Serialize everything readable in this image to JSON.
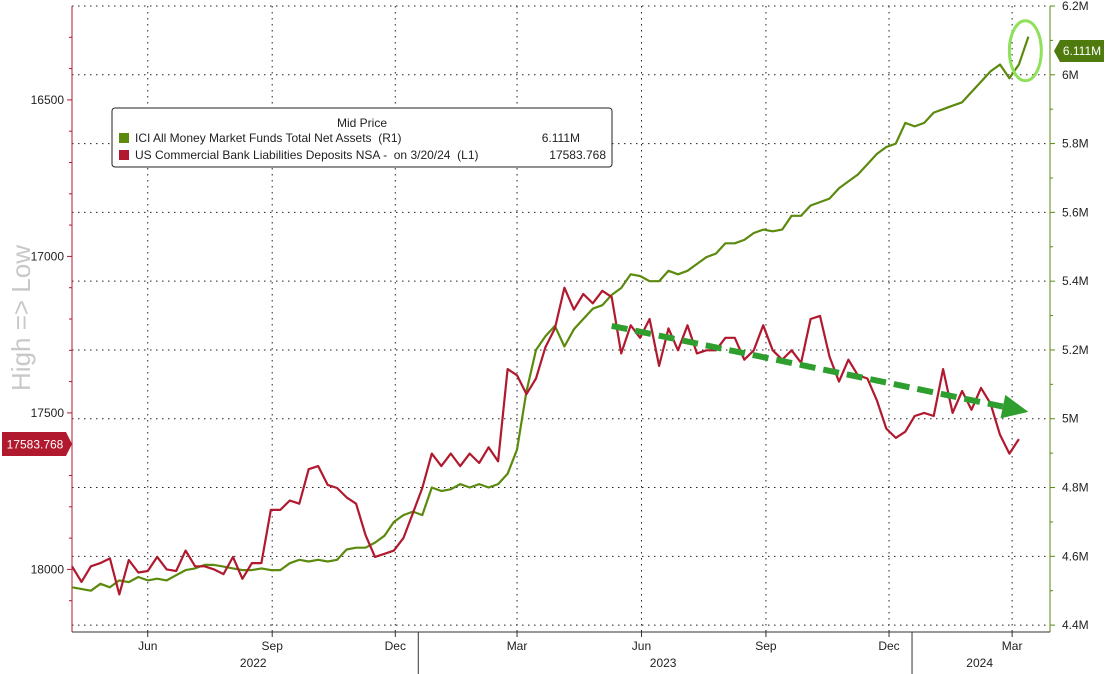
{
  "chart_data": {
    "type": "line",
    "title": "",
    "legend": {
      "title": "Mid Price",
      "placement": "top-left",
      "entries": [
        {
          "name": "ICI All Money Market Funds Total Net Assets  (R1)",
          "value": "6.111M",
          "color": "#5b8a0f"
        },
        {
          "name": "US Commercial Bank Liabilities Deposits NSA -  on 3/20/24  (L1)",
          "value": "17583.768",
          "color": "#b0192e"
        }
      ]
    },
    "left_axis": {
      "label": "High => Low",
      "inverted": true,
      "range": [
        18200,
        16200
      ],
      "ticks": [
        "16500",
        "17000",
        "17500",
        "18000"
      ],
      "last_value": "17583.768",
      "color": "#b0192e"
    },
    "right_axis": {
      "range": [
        4.38,
        6.2
      ],
      "ticks": [
        "4.4M",
        "4.6M",
        "4.8M",
        "5M",
        "5.2M",
        "5.4M",
        "5.6M",
        "5.8M",
        "6M",
        "6.2M"
      ],
      "last_value": "6.111M",
      "color": "#5b8a0f"
    },
    "x_axis": {
      "range": [
        "2022-04-20",
        "2024-04-12"
      ],
      "month_ticks": [
        {
          "label": "Jun",
          "date": "2022-06-15"
        },
        {
          "label": "Sep",
          "date": "2022-09-15"
        },
        {
          "label": "Dec",
          "date": "2022-12-15"
        },
        {
          "label": "Mar",
          "date": "2023-03-15"
        },
        {
          "label": "Jun",
          "date": "2023-06-15"
        },
        {
          "label": "Sep",
          "date": "2023-09-15"
        },
        {
          "label": "Dec",
          "date": "2023-12-15"
        },
        {
          "label": "Mar",
          "date": "2024-03-15"
        }
      ],
      "years": [
        {
          "label": "2022",
          "date": "2022-09-01"
        },
        {
          "label": "2023",
          "date": "2023-07-01"
        },
        {
          "label": "2024",
          "date": "2024-02-20"
        }
      ],
      "year_boundaries": [
        "2023-01-01",
        "2024-01-01"
      ]
    },
    "grid": true,
    "series": [
      {
        "name": "ICI All Money Market Funds Total Net Assets",
        "axis": "right",
        "color": "#5b8a0f",
        "points": [
          [
            "2022-04-20",
            4.51
          ],
          [
            "2022-05-04",
            4.5
          ],
          [
            "2022-05-11",
            4.52
          ],
          [
            "2022-05-18",
            4.51
          ],
          [
            "2022-05-25",
            4.53
          ],
          [
            "2022-06-01",
            4.525
          ],
          [
            "2022-06-08",
            4.54
          ],
          [
            "2022-06-15",
            4.53
          ],
          [
            "2022-06-22",
            4.535
          ],
          [
            "2022-06-29",
            4.53
          ],
          [
            "2022-07-06",
            4.545
          ],
          [
            "2022-07-13",
            4.56
          ],
          [
            "2022-07-20",
            4.565
          ],
          [
            "2022-07-27",
            4.575
          ],
          [
            "2022-08-03",
            4.575
          ],
          [
            "2022-08-10",
            4.57
          ],
          [
            "2022-08-17",
            4.565
          ],
          [
            "2022-08-24",
            4.56
          ],
          [
            "2022-08-31",
            4.56
          ],
          [
            "2022-09-07",
            4.565
          ],
          [
            "2022-09-14",
            4.56
          ],
          [
            "2022-09-21",
            4.56
          ],
          [
            "2022-09-28",
            4.58
          ],
          [
            "2022-10-05",
            4.59
          ],
          [
            "2022-10-12",
            4.585
          ],
          [
            "2022-10-19",
            4.59
          ],
          [
            "2022-10-26",
            4.585
          ],
          [
            "2022-11-02",
            4.59
          ],
          [
            "2022-11-09",
            4.62
          ],
          [
            "2022-11-16",
            4.625
          ],
          [
            "2022-11-23",
            4.625
          ],
          [
            "2022-11-30",
            4.64
          ],
          [
            "2022-12-07",
            4.66
          ],
          [
            "2022-12-14",
            4.7
          ],
          [
            "2022-12-21",
            4.72
          ],
          [
            "2022-12-28",
            4.73
          ],
          [
            "2023-01-04",
            4.72
          ],
          [
            "2023-01-11",
            4.8
          ],
          [
            "2023-01-18",
            4.79
          ],
          [
            "2023-01-25",
            4.795
          ],
          [
            "2023-02-01",
            4.81
          ],
          [
            "2023-02-08",
            4.8
          ],
          [
            "2023-02-15",
            4.81
          ],
          [
            "2023-02-22",
            4.8
          ],
          [
            "2023-03-01",
            4.81
          ],
          [
            "2023-03-08",
            4.84
          ],
          [
            "2023-03-15",
            4.91
          ],
          [
            "2023-03-22",
            5.08
          ],
          [
            "2023-03-29",
            5.2
          ],
          [
            "2023-04-05",
            5.24
          ],
          [
            "2023-04-12",
            5.27
          ],
          [
            "2023-04-19",
            5.21
          ],
          [
            "2023-04-26",
            5.26
          ],
          [
            "2023-05-03",
            5.29
          ],
          [
            "2023-05-10",
            5.32
          ],
          [
            "2023-05-17",
            5.33
          ],
          [
            "2023-05-24",
            5.36
          ],
          [
            "2023-05-31",
            5.38
          ],
          [
            "2023-06-07",
            5.42
          ],
          [
            "2023-06-14",
            5.415
          ],
          [
            "2023-06-21",
            5.4
          ],
          [
            "2023-06-28",
            5.4
          ],
          [
            "2023-07-05",
            5.43
          ],
          [
            "2023-07-12",
            5.42
          ],
          [
            "2023-07-19",
            5.43
          ],
          [
            "2023-07-26",
            5.45
          ],
          [
            "2023-08-02",
            5.47
          ],
          [
            "2023-08-09",
            5.48
          ],
          [
            "2023-08-16",
            5.51
          ],
          [
            "2023-08-23",
            5.51
          ],
          [
            "2023-08-30",
            5.52
          ],
          [
            "2023-09-06",
            5.54
          ],
          [
            "2023-09-13",
            5.55
          ],
          [
            "2023-09-20",
            5.545
          ],
          [
            "2023-09-27",
            5.55
          ],
          [
            "2023-10-04",
            5.59
          ],
          [
            "2023-10-11",
            5.59
          ],
          [
            "2023-10-18",
            5.62
          ],
          [
            "2023-10-25",
            5.63
          ],
          [
            "2023-11-01",
            5.64
          ],
          [
            "2023-11-08",
            5.67
          ],
          [
            "2023-11-15",
            5.69
          ],
          [
            "2023-11-22",
            5.71
          ],
          [
            "2023-11-29",
            5.74
          ],
          [
            "2023-12-06",
            5.77
          ],
          [
            "2023-12-13",
            5.79
          ],
          [
            "2023-12-20",
            5.8
          ],
          [
            "2023-12-27",
            5.86
          ],
          [
            "2024-01-03",
            5.85
          ],
          [
            "2024-01-10",
            5.86
          ],
          [
            "2024-01-17",
            5.89
          ],
          [
            "2024-01-24",
            5.9
          ],
          [
            "2024-01-31",
            5.91
          ],
          [
            "2024-02-07",
            5.92
          ],
          [
            "2024-02-14",
            5.95
          ],
          [
            "2024-02-21",
            5.98
          ],
          [
            "2024-02-28",
            6.01
          ],
          [
            "2024-03-06",
            6.03
          ],
          [
            "2024-03-13",
            5.99
          ],
          [
            "2024-03-20",
            6.03
          ],
          [
            "2024-03-27",
            6.111
          ]
        ]
      },
      {
        "name": "US Commercial Bank Liabilities Deposits NSA",
        "axis": "left",
        "color": "#b0192e",
        "points": [
          [
            "2022-04-20",
            17990
          ],
          [
            "2022-04-27",
            18040
          ],
          [
            "2022-05-04",
            17990
          ],
          [
            "2022-05-11",
            17980
          ],
          [
            "2022-05-18",
            17965
          ],
          [
            "2022-05-25",
            18080
          ],
          [
            "2022-06-01",
            17970
          ],
          [
            "2022-06-08",
            18010
          ],
          [
            "2022-06-15",
            18005
          ],
          [
            "2022-06-22",
            17960
          ],
          [
            "2022-06-29",
            18000
          ],
          [
            "2022-07-06",
            18005
          ],
          [
            "2022-07-13",
            17940
          ],
          [
            "2022-07-20",
            17990
          ],
          [
            "2022-07-27",
            17990
          ],
          [
            "2022-08-03",
            18000
          ],
          [
            "2022-08-10",
            18015
          ],
          [
            "2022-08-17",
            17960
          ],
          [
            "2022-08-24",
            18030
          ],
          [
            "2022-08-31",
            17980
          ],
          [
            "2022-09-07",
            17980
          ],
          [
            "2022-09-14",
            17810
          ],
          [
            "2022-09-21",
            17810
          ],
          [
            "2022-09-28",
            17780
          ],
          [
            "2022-10-05",
            17790
          ],
          [
            "2022-10-12",
            17680
          ],
          [
            "2022-10-19",
            17670
          ],
          [
            "2022-10-26",
            17730
          ],
          [
            "2022-11-02",
            17740
          ],
          [
            "2022-11-09",
            17770
          ],
          [
            "2022-11-16",
            17790
          ],
          [
            "2022-11-23",
            17890
          ],
          [
            "2022-11-30",
            17960
          ],
          [
            "2022-12-07",
            17950
          ],
          [
            "2022-12-14",
            17940
          ],
          [
            "2022-12-21",
            17900
          ],
          [
            "2022-12-28",
            17820
          ],
          [
            "2023-01-04",
            17740
          ],
          [
            "2023-01-11",
            17630
          ],
          [
            "2023-01-18",
            17670
          ],
          [
            "2023-01-25",
            17630
          ],
          [
            "2023-02-01",
            17670
          ],
          [
            "2023-02-08",
            17630
          ],
          [
            "2023-02-15",
            17660
          ],
          [
            "2023-02-22",
            17610
          ],
          [
            "2023-03-01",
            17655
          ],
          [
            "2023-03-08",
            17360
          ],
          [
            "2023-03-15",
            17380
          ],
          [
            "2023-03-22",
            17440
          ],
          [
            "2023-03-29",
            17390
          ],
          [
            "2023-04-05",
            17290
          ],
          [
            "2023-04-12",
            17230
          ],
          [
            "2023-04-19",
            17100
          ],
          [
            "2023-04-26",
            17170
          ],
          [
            "2023-05-03",
            17120
          ],
          [
            "2023-05-10",
            17150
          ],
          [
            "2023-05-17",
            17110
          ],
          [
            "2023-05-24",
            17130
          ],
          [
            "2023-05-31",
            17310
          ],
          [
            "2023-06-07",
            17220
          ],
          [
            "2023-06-14",
            17260
          ],
          [
            "2023-06-21",
            17200
          ],
          [
            "2023-06-28",
            17350
          ],
          [
            "2023-07-05",
            17230
          ],
          [
            "2023-07-12",
            17300
          ],
          [
            "2023-07-19",
            17220
          ],
          [
            "2023-07-26",
            17310
          ],
          [
            "2023-08-02",
            17300
          ],
          [
            "2023-08-09",
            17300
          ],
          [
            "2023-08-16",
            17260
          ],
          [
            "2023-08-23",
            17260
          ],
          [
            "2023-08-30",
            17330
          ],
          [
            "2023-09-06",
            17300
          ],
          [
            "2023-09-13",
            17220
          ],
          [
            "2023-09-20",
            17300
          ],
          [
            "2023-09-27",
            17330
          ],
          [
            "2023-10-04",
            17300
          ],
          [
            "2023-10-11",
            17340
          ],
          [
            "2023-10-18",
            17200
          ],
          [
            "2023-10-25",
            17190
          ],
          [
            "2023-11-01",
            17320
          ],
          [
            "2023-11-08",
            17400
          ],
          [
            "2023-11-15",
            17330
          ],
          [
            "2023-11-22",
            17380
          ],
          [
            "2023-11-29",
            17390
          ],
          [
            "2023-12-06",
            17460
          ],
          [
            "2023-12-13",
            17550
          ],
          [
            "2023-12-20",
            17580
          ],
          [
            "2023-12-27",
            17560
          ],
          [
            "2024-01-03",
            17510
          ],
          [
            "2024-01-10",
            17500
          ],
          [
            "2024-01-17",
            17510
          ],
          [
            "2024-01-24",
            17360
          ],
          [
            "2024-01-31",
            17500
          ],
          [
            "2024-02-07",
            17430
          ],
          [
            "2024-02-14",
            17490
          ],
          [
            "2024-02-21",
            17420
          ],
          [
            "2024-02-28",
            17470
          ],
          [
            "2024-03-06",
            17570
          ],
          [
            "2024-03-13",
            17630
          ],
          [
            "2024-03-20",
            17583.768
          ]
        ]
      }
    ],
    "annotations": [
      {
        "type": "dashed-arrow",
        "color": "#2e9e2e",
        "from": [
          "2023-05-24",
          5.27
        ],
        "to": [
          "2024-03-27",
          5.02
        ],
        "axis": "right"
      },
      {
        "type": "ellipse",
        "color": "#8fe05a",
        "center": [
          "2024-03-27",
          6.07
        ],
        "axis": "right"
      }
    ]
  }
}
